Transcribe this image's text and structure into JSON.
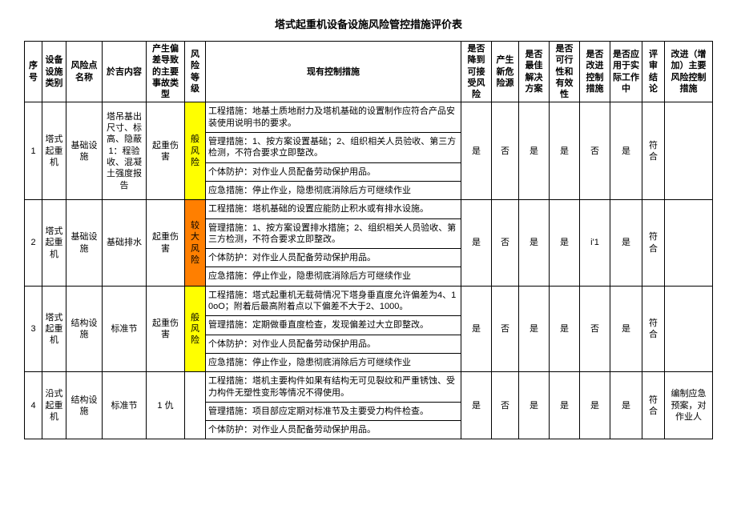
{
  "title": "塔式起重机设备设施风险管控措施评价表",
  "headers": {
    "c0": "序号",
    "c1": "设备设施类别",
    "c2": "风险点名称",
    "c3": "於吉内容",
    "c4": "产生偏差导致的主要事故类型",
    "c5": "风险等级",
    "c6": "现有控制措施",
    "c7": "是否降到可接受风险",
    "c8": "产生新危险源",
    "c9": "是否最佳解决方案",
    "c10": "是否可行性和有效性",
    "c11": "是否改进控制措施",
    "c12": "是否应用于实际工作中",
    "c13": "评审结论",
    "c14": "改进（增加）主要风险控制措施"
  },
  "rows": [
    {
      "no": "1",
      "cat": "塔式起重机",
      "point": "基础设施",
      "content": "塔吊基出尺寸、标高、隐蔽1：程验收、混凝土强度报告",
      "dev": "起重伤害",
      "risk": "般风险",
      "riskClass": "risk-yellow",
      "m1": "工程措施：地基土质地耐力及塔机基础的设置制作应符合产品安装使用说明书的要求。",
      "m2": "管理措施：1、按方案设置基础；2、组织相关人员验收、第三方检测，不符合要求立即整改。",
      "m3": "个体防护：对作业人员配备劳动保护用品。",
      "m4": "应急措施：停止作业，隐患彻底消除后方可继续作业",
      "a1": "是",
      "a2": "否",
      "a3": "是",
      "a4": "是",
      "a5": "否",
      "a6": "是",
      "a7": "符合",
      "a8": ""
    },
    {
      "no": "2",
      "cat": "塔式起重机",
      "point": "基础设施",
      "content": "基础排水",
      "dev": "起重伤害",
      "risk": "较大风险",
      "riskClass": "risk-orange",
      "m1": "工程措施：塔机基础的设置应能防止积水或有排水设施。",
      "m2": "管理措施：1、按方案设置排水措施；2、组织相关人员验收、第三方检测，不符合要求立即整改。",
      "m3": "个体防护：对作业人员配备劳动保护用品。",
      "m4": "应急措施：停止作业，隐患彻底消除后方可继续作业",
      "a1": "是",
      "a2": "否",
      "a3": "是",
      "a4": "是",
      "a5": "i'1",
      "a6": "是",
      "a7": "符合",
      "a8": ""
    },
    {
      "no": "3",
      "cat": "塔式起重机",
      "point": "结构设施",
      "content": "标准节",
      "dev": "起重伤害",
      "risk": "般风险",
      "riskClass": "risk-yellow",
      "m1": "工程措施：塔式起重机无载荷情况下塔身垂直度允许偏差为4、10oO；附着后最高附着点以下偏差不大于2、1000。",
      "m2": "管理措施：定期做垂直度检查，发现偏差过大立即整改。",
      "m3": "个体防护：对作业人员配备劳动保护用品。",
      "m4": "应急措施：停止作业，隐患彻底消除后方可继续作业",
      "a1": "是",
      "a2": "否",
      "a3": "是",
      "a4": "是",
      "a5": "否",
      "a6": "是",
      "a7": "符合",
      "a8": ""
    },
    {
      "no": "4",
      "cat": "沿式起重机",
      "point": "结构设施",
      "content": "标准节",
      "dev": "1 仇",
      "risk": "",
      "riskClass": "",
      "m1": "工程措施：塔机主要构件如果有结构无可见裂纹和严重锈蚀、受力构件无塑性变形等情况不得使用。",
      "m2": "管理措施：项目部应定期对标准节及主要受力构件检查。",
      "m3": "个体防护：对作业人员配备劳动保护用品。",
      "m4": "",
      "a1": "是",
      "a2": "否",
      "a3": "是",
      "a4": "是",
      "a5": "是",
      "a6": "是",
      "a7": "符合",
      "a8": "编制应急预案，对作业人"
    }
  ]
}
